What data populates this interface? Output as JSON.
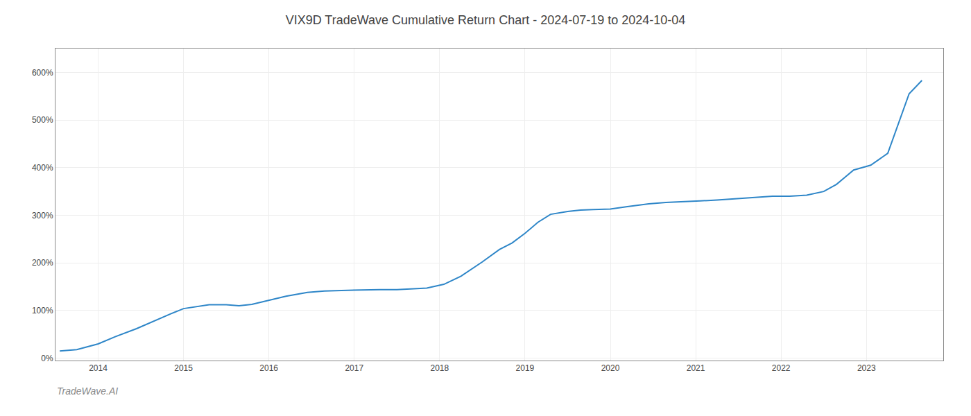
{
  "chart_data": {
    "type": "line",
    "title": "VIX9D TradeWave Cumulative Return Chart - 2024-07-19 to 2024-10-04",
    "annotations": [
      "TradeWave.AI"
    ],
    "color": "#2e86c8",
    "grid": true,
    "x": [
      2013.55,
      2013.75,
      2014.0,
      2014.2,
      2014.45,
      2014.65,
      2014.85,
      2015.0,
      2015.15,
      2015.3,
      2015.5,
      2015.65,
      2015.8,
      2016.0,
      2016.2,
      2016.45,
      2016.65,
      2016.85,
      2017.0,
      2017.15,
      2017.3,
      2017.5,
      2017.65,
      2017.85,
      2018.05,
      2018.25,
      2018.5,
      2018.7,
      2018.85,
      2019.0,
      2019.15,
      2019.3,
      2019.5,
      2019.65,
      2019.8,
      2020.0,
      2020.2,
      2020.45,
      2020.65,
      2020.85,
      2021.05,
      2021.25,
      2021.5,
      2021.7,
      2021.9,
      2022.1,
      2022.3,
      2022.5,
      2022.65,
      2022.75,
      2022.85,
      2022.95,
      2023.05,
      2023.25,
      2023.5,
      2023.65
    ],
    "values": [
      0.15,
      0.18,
      0.3,
      0.45,
      0.62,
      0.78,
      0.93,
      1.04,
      1.08,
      1.12,
      1.12,
      1.1,
      1.13,
      1.22,
      1.3,
      1.38,
      1.41,
      1.42,
      1.43,
      1.44,
      1.44,
      1.44,
      1.45,
      1.47,
      1.55,
      1.72,
      2.02,
      2.28,
      2.42,
      2.62,
      2.85,
      3.02,
      3.08,
      3.11,
      3.12,
      3.13,
      3.18,
      3.24,
      3.27,
      3.28,
      3.3,
      3.32,
      3.35,
      3.38,
      3.4,
      3.4,
      3.42,
      3.5,
      3.65,
      3.8,
      3.95,
      4.0,
      4.05,
      4.3,
      5.55,
      5.83
    ],
    "xlim": [
      2013.5,
      2023.9
    ],
    "ylim": [
      -0.05,
      6.5
    ],
    "xticks": [
      2014,
      2015,
      2016,
      2017,
      2018,
      2019,
      2020,
      2021,
      2022,
      2023
    ],
    "yticks": [
      {
        "value": 0,
        "label": "0%"
      },
      {
        "value": 1,
        "label": "100%"
      },
      {
        "value": 2,
        "label": "200%"
      },
      {
        "value": 3,
        "label": "300%"
      },
      {
        "value": 4,
        "label": "400%"
      },
      {
        "value": 5,
        "label": "500%"
      },
      {
        "value": 6,
        "label": "600%"
      }
    ]
  }
}
